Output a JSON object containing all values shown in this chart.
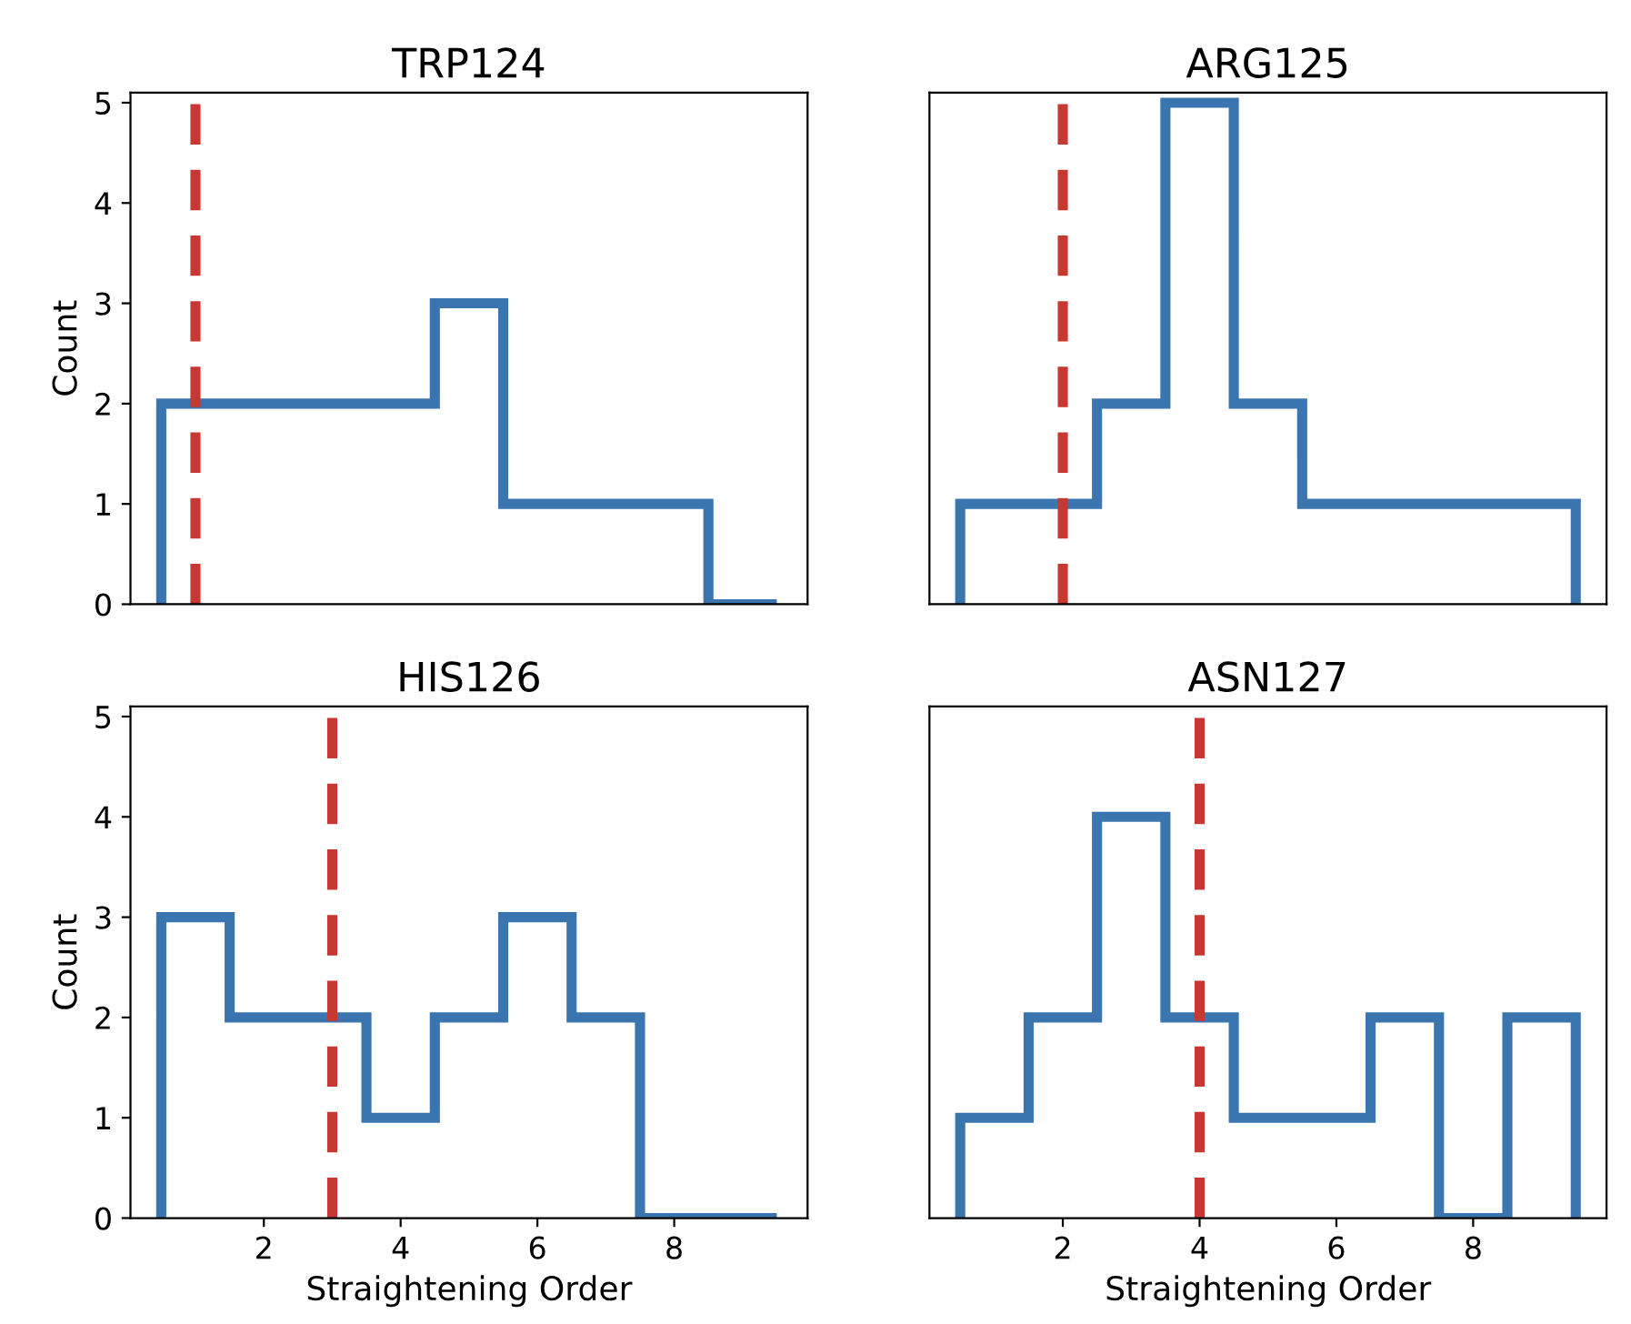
{
  "chart_data": [
    {
      "type": "histogram",
      "title": "TRP124",
      "ylabel": "Count",
      "bins": [
        0.5,
        1.5,
        2.5,
        3.5,
        4.5,
        5.5,
        6.5,
        7.5,
        8.5,
        9.5
      ],
      "values": [
        2,
        2,
        2,
        2,
        3,
        1,
        1,
        1,
        0
      ],
      "color": "#3a75b0",
      "xlim": [
        0.05,
        9.95
      ],
      "ylim": [
        0,
        5.1
      ],
      "xticks": [
        2,
        4,
        6,
        8
      ],
      "yticks": [
        0,
        1,
        2,
        3,
        4,
        5
      ],
      "tick_labels": "y",
      "ref_lines": [
        {
          "axis": "x",
          "value": 1,
          "color": "#c83832",
          "line_style": "dashed"
        }
      ]
    },
    {
      "type": "histogram",
      "title": "ARG125",
      "bins": [
        0.5,
        1.5,
        2.5,
        3.5,
        4.5,
        5.5,
        6.5,
        7.5,
        8.5,
        9.5
      ],
      "values": [
        1,
        1,
        2,
        5,
        2,
        1,
        1,
        1,
        1
      ],
      "color": "#3a75b0",
      "xlim": [
        0.05,
        9.95
      ],
      "ylim": [
        0,
        5.1
      ],
      "xticks": [
        2,
        4,
        6,
        8
      ],
      "yticks": [
        0,
        1,
        2,
        3,
        4,
        5
      ],
      "tick_labels": false,
      "ref_lines": [
        {
          "axis": "x",
          "value": 2,
          "color": "#c83832",
          "line_style": "dashed"
        }
      ]
    },
    {
      "type": "histogram",
      "title": "HIS126",
      "xlabel": "Straightening Order",
      "ylabel": "Count",
      "bins": [
        0.5,
        1.5,
        2.5,
        3.5,
        4.5,
        5.5,
        6.5,
        7.5,
        8.5,
        9.5
      ],
      "values": [
        3,
        2,
        2,
        1,
        2,
        3,
        2,
        0,
        0
      ],
      "color": "#3a75b0",
      "xlim": [
        0.05,
        9.95
      ],
      "ylim": [
        0,
        5.1
      ],
      "xticks": [
        2,
        4,
        6,
        8
      ],
      "yticks": [
        0,
        1,
        2,
        3,
        4,
        5
      ],
      "ref_lines": [
        {
          "axis": "x",
          "value": 3,
          "color": "#c83832",
          "line_style": "dashed"
        }
      ]
    },
    {
      "type": "histogram",
      "title": "ASN127",
      "xlabel": "Straightening Order",
      "bins": [
        0.5,
        1.5,
        2.5,
        3.5,
        4.5,
        5.5,
        6.5,
        7.5,
        8.5,
        9.5
      ],
      "values": [
        1,
        2,
        4,
        2,
        1,
        1,
        2,
        0,
        2
      ],
      "color": "#3a75b0",
      "xlim": [
        0.05,
        9.95
      ],
      "ylim": [
        0,
        5.1
      ],
      "xticks": [
        2,
        4,
        6,
        8
      ],
      "yticks": [
        0,
        1,
        2,
        3,
        4,
        5
      ],
      "tick_labels": "x",
      "ref_lines": [
        {
          "axis": "x",
          "value": 4,
          "color": "#c83832",
          "line_style": "dashed"
        }
      ]
    }
  ]
}
